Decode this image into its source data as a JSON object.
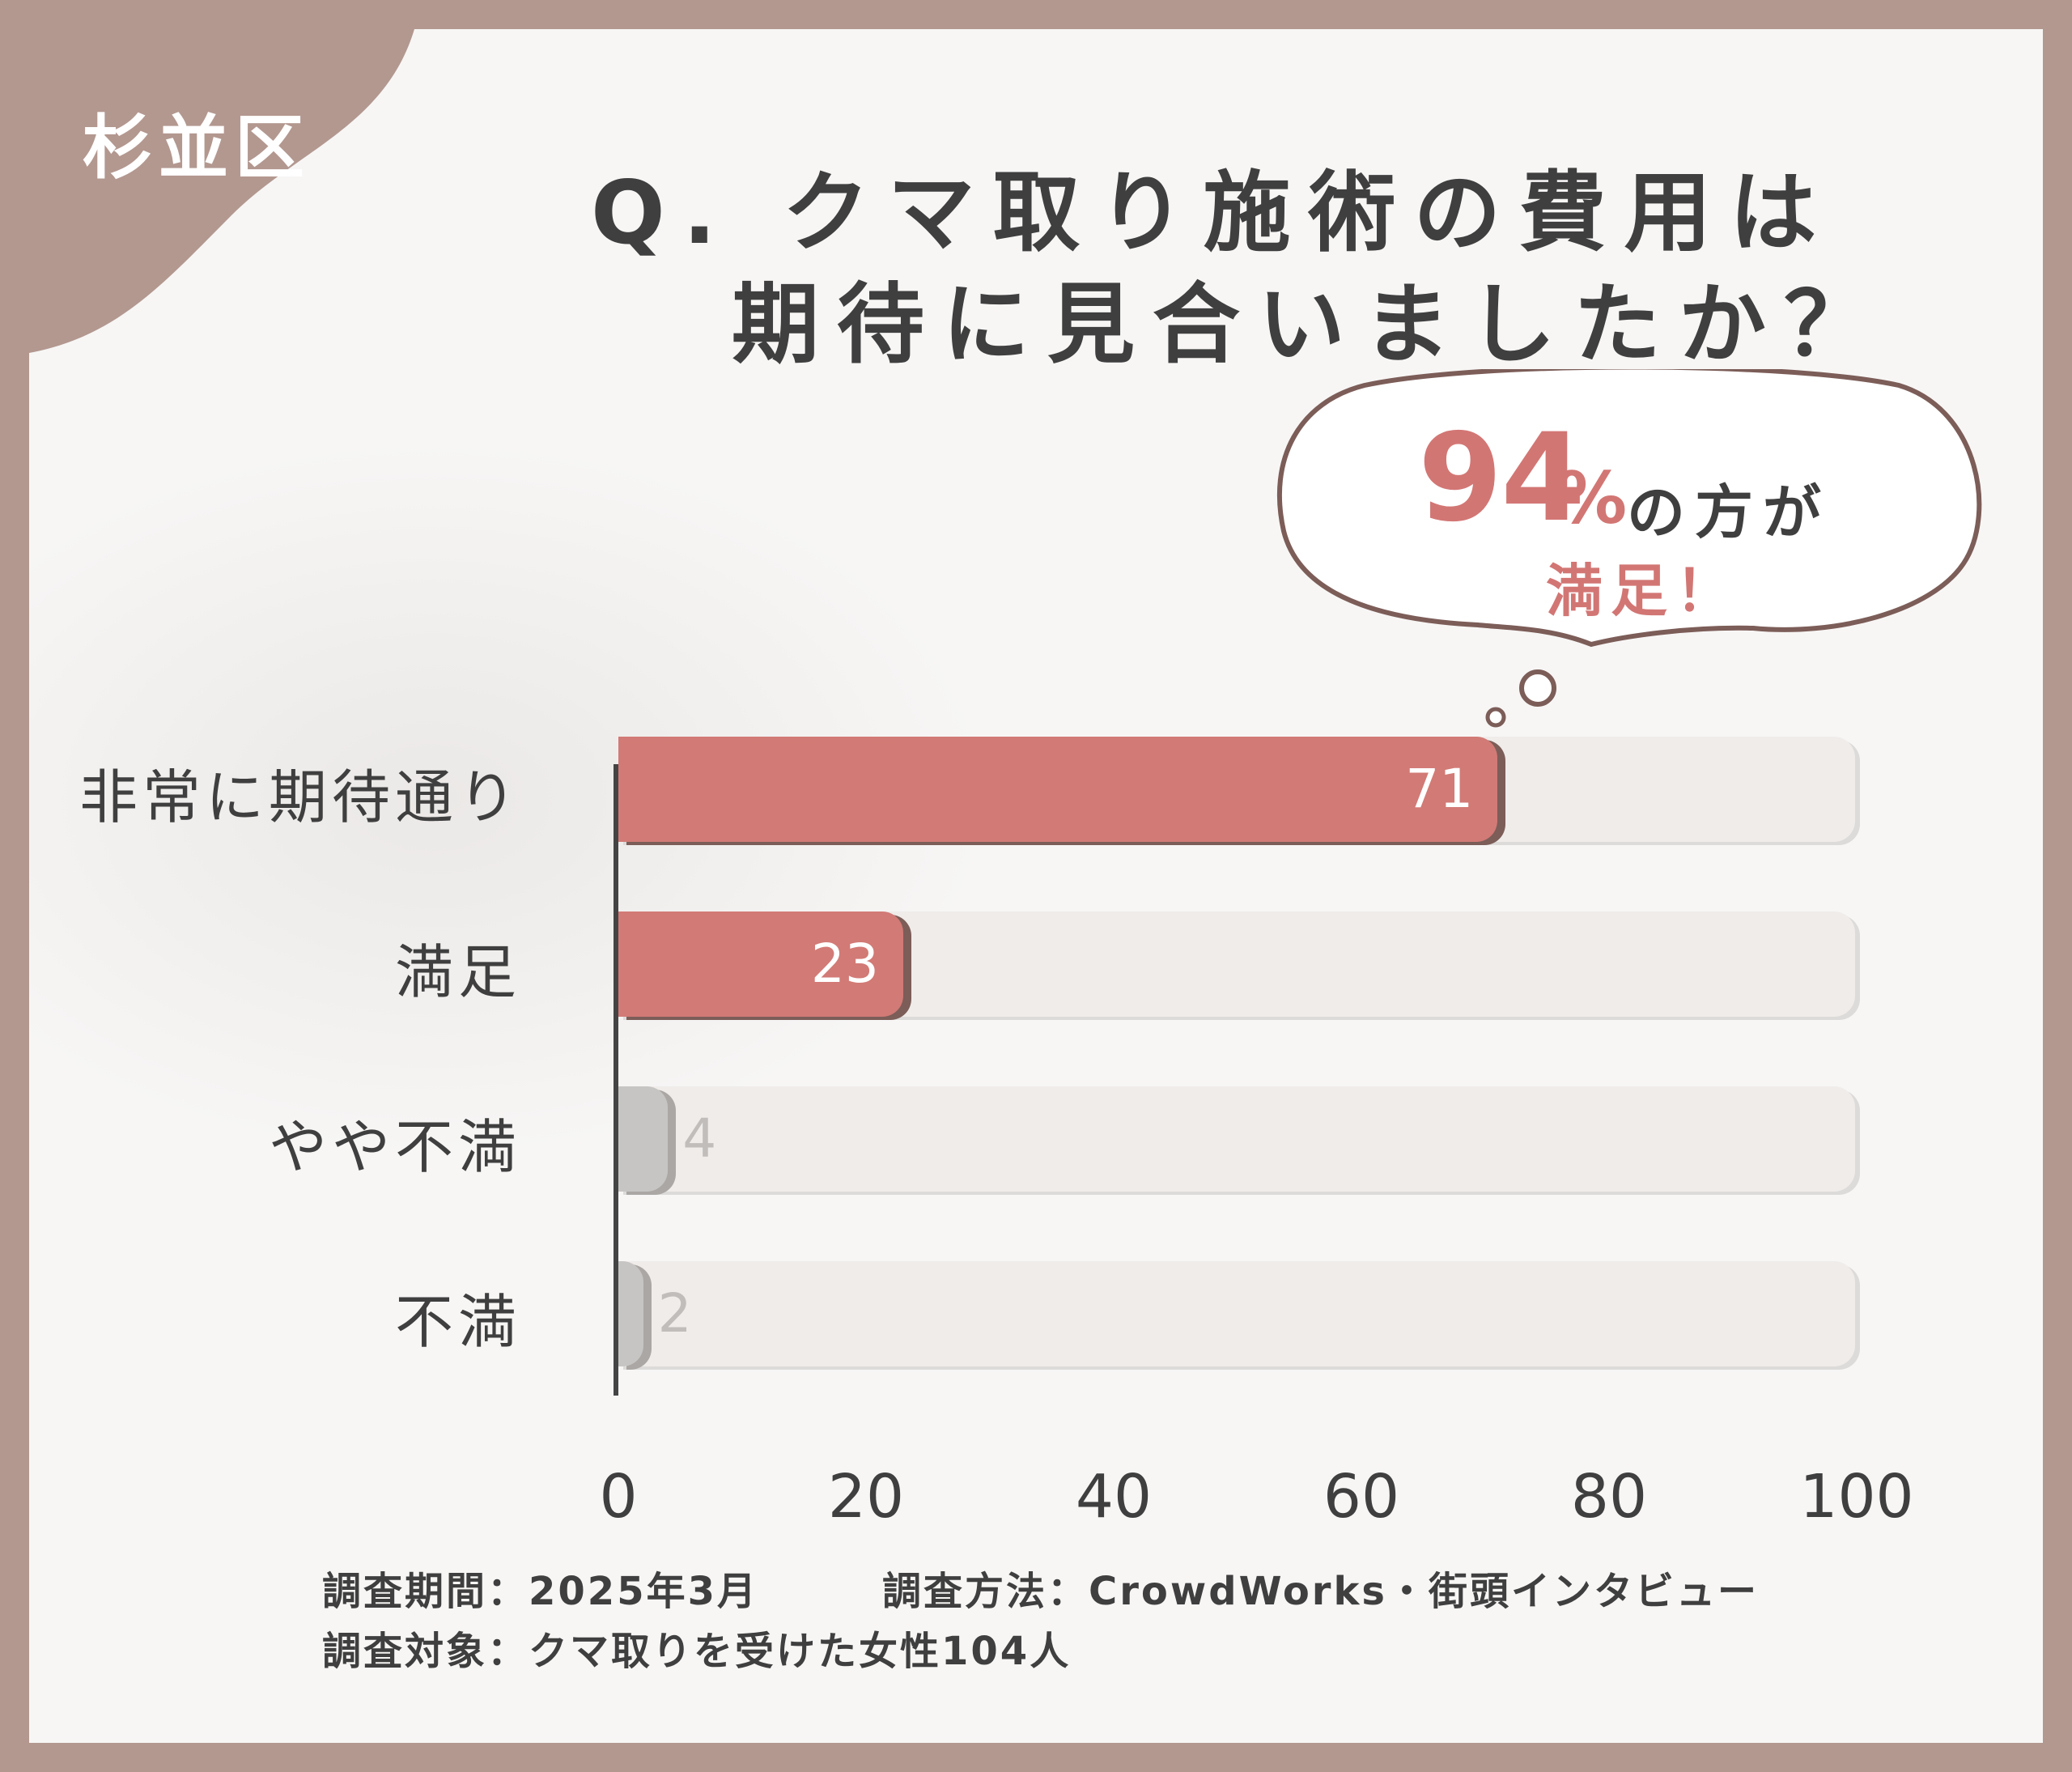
{
  "area_label": "杉並区",
  "title_line1": "Q. クマ取り施術の費用は",
  "title_line2": "期待に見合いましたか？",
  "callout": {
    "percent": "94",
    "percent_unit": "%",
    "tail": "の方が",
    "line2": "満足！"
  },
  "colors": {
    "frame": "#b39890",
    "accent": "#d27674",
    "bar_high": "#d27a76",
    "bar_low": "#c7c5c3",
    "track": "#efecea",
    "text": "#3f3f3f"
  },
  "chart_data": {
    "type": "bar",
    "orientation": "horizontal",
    "categories": [
      "非常に期待通り",
      "満足",
      "やや不満",
      "不満"
    ],
    "values": [
      71,
      23,
      4,
      2
    ],
    "value_labels": [
      "71",
      "23",
      "4",
      "2"
    ],
    "xlim": [
      0,
      100
    ],
    "xticks": [
      "0",
      "20",
      "40",
      "60",
      "80",
      "100"
    ],
    "grid": false,
    "legend": "none"
  },
  "footer": {
    "period": "調査期間：2025年3月",
    "method": "調査方法：CrowdWorks・街頭インタビュー",
    "target": "調査対象：クマ取りを受けた女性104人"
  }
}
